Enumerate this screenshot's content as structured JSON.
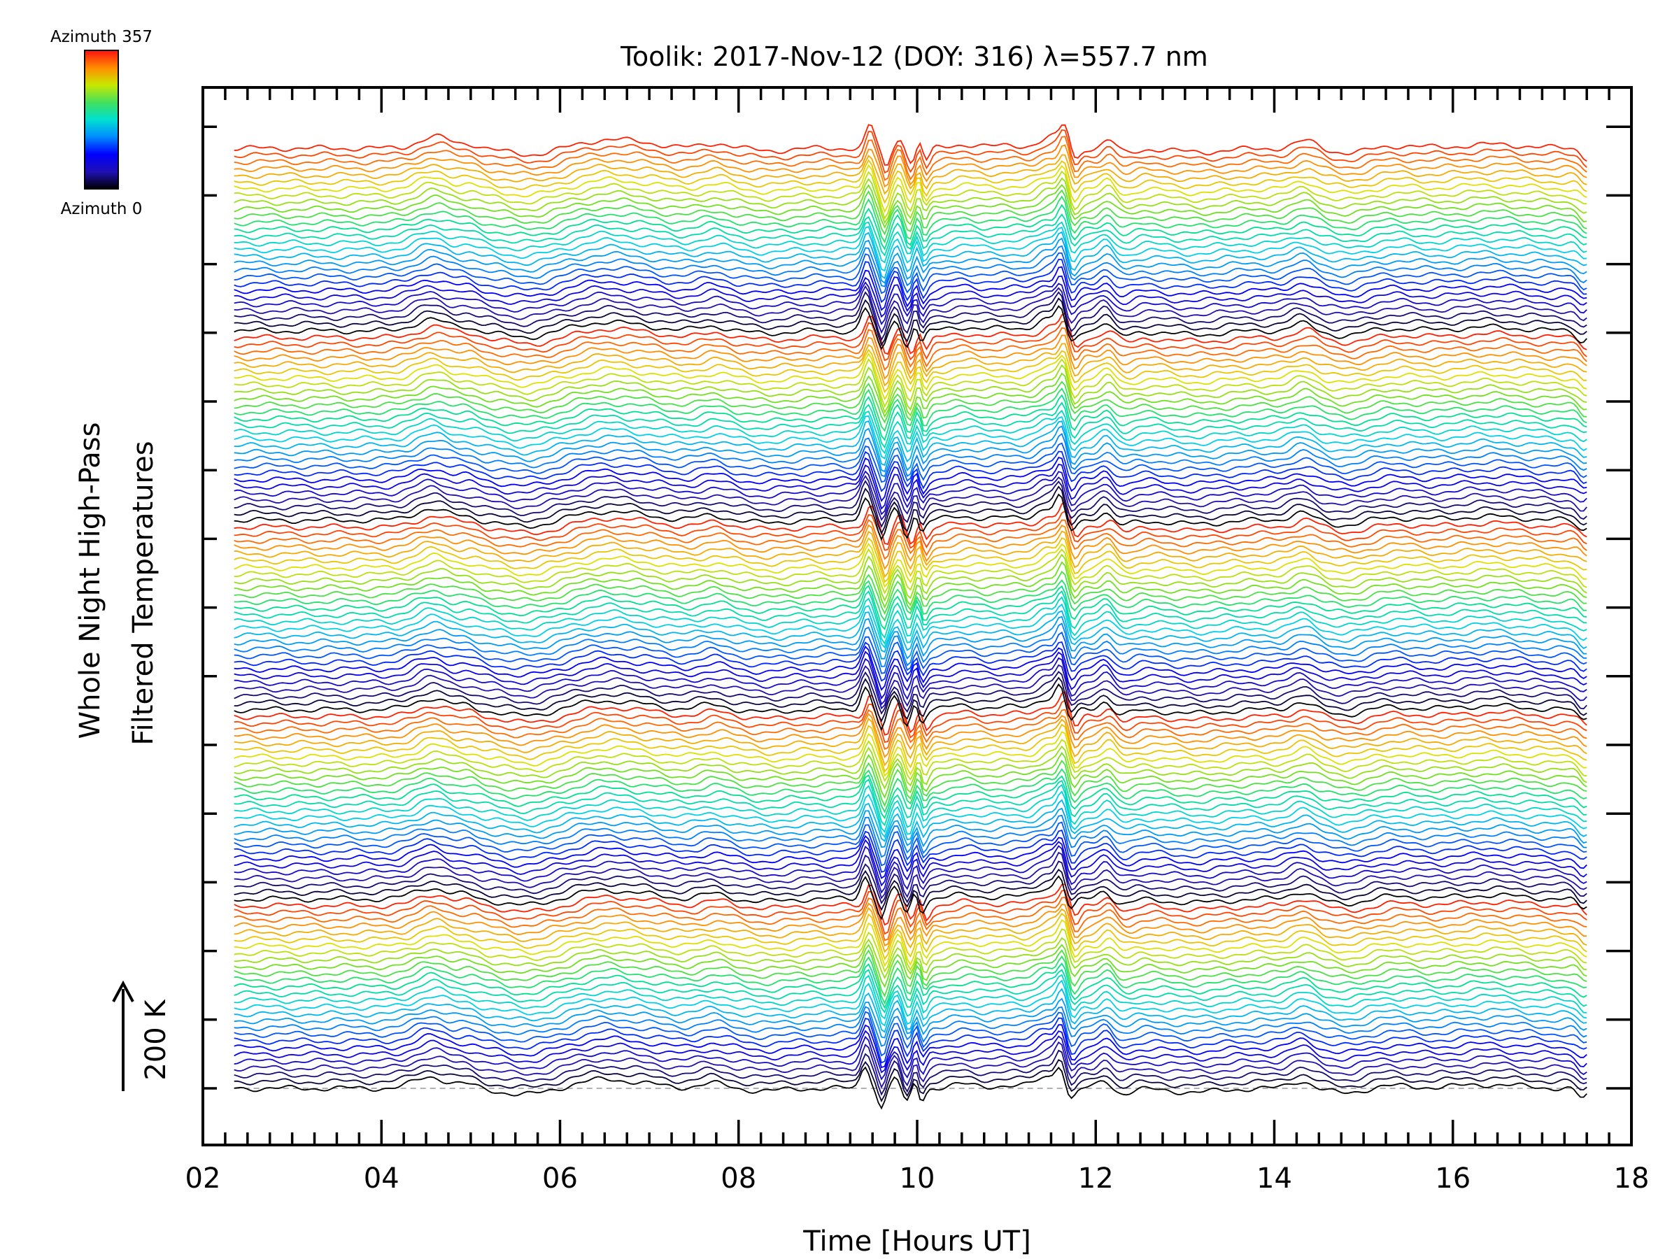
{
  "chart_data": {
    "type": "line",
    "title": "Toolik: 2017-Nov-12 (DOY: 316) λ=557.7 nm",
    "xlabel": "Time [Hours UT]",
    "ylabel_line1": "Whole Night High-Pass",
    "ylabel_line2": "Filtered Temperatures",
    "xlim": [
      2,
      18
    ],
    "x_ticks": [
      "02",
      "04",
      "06",
      "08",
      "10",
      "12",
      "14",
      "16",
      "18"
    ],
    "x_range_data": [
      2.35,
      17.5
    ],
    "scale_bar_label": "200 K",
    "colorbar": {
      "top_label": "Azimuth 357",
      "bottom_label": "Azimuth 0",
      "min": 0,
      "max": 357
    },
    "series_count": 140,
    "series_period": 28,
    "y_major_tick_count": 15,
    "colormap": [
      "#000000",
      "#2010b0",
      "#0000ff",
      "#0080ff",
      "#00d0e8",
      "#00e090",
      "#70e020",
      "#e0e000",
      "#ff9000",
      "#ff2000"
    ]
  }
}
